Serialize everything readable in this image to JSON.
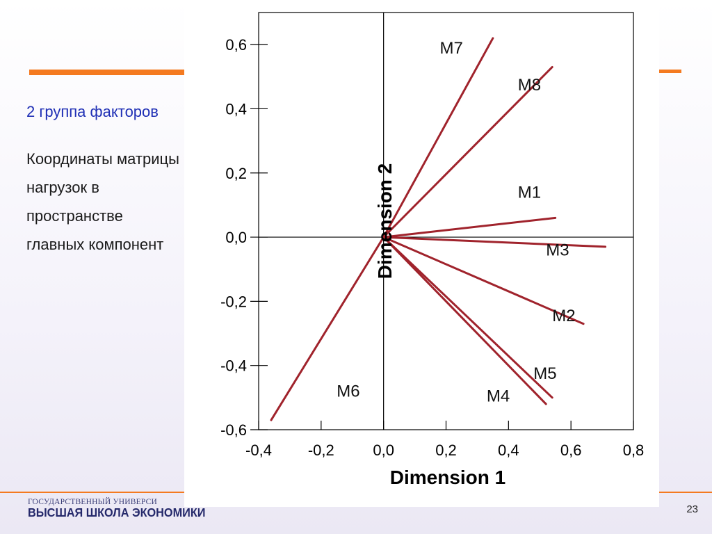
{
  "slide": {
    "text_group": "2 группа факторов",
    "text_body": "Координаты матрицы нагрузок в пространстве главных компонент",
    "footer_line1": "ГОСУДАРСТВЕННЫЙ УНИВЕРСИ",
    "footer_line2": "ВЫСШАЯ ШКОЛА ЭКОНОМИКИ",
    "page_number": "23",
    "colors": {
      "accent": "#f47a20",
      "vector": "#a0232c",
      "group_text": "#1f2fb5"
    }
  },
  "chart_data": {
    "type": "scatter",
    "xlabel": "Dimension 1",
    "ylabel": "Dimension 2",
    "xlim": [
      -0.4,
      0.8
    ],
    "ylim": [
      -0.6,
      0.7
    ],
    "xticks": [
      -0.4,
      -0.2,
      0.0,
      0.2,
      0.4,
      0.6,
      0.8
    ],
    "xtick_labels": [
      "-0,4",
      "-0,2",
      "0,0",
      "0,2",
      "0,4",
      "0,6",
      "0,8"
    ],
    "yticks": [
      0.6,
      0.4,
      0.2,
      0.0,
      -0.2,
      -0.4,
      -0.6
    ],
    "ytick_labels": [
      "0,6",
      "0,4",
      "0,2",
      "0,0",
      "-0,2",
      "-0,4",
      "-0,6"
    ],
    "reference_lines": {
      "x": 0.0,
      "y": 0.0
    },
    "grid": false,
    "vectors": [
      {
        "label": "M1",
        "x": 0.55,
        "y": 0.06,
        "label_x": 0.43,
        "label_y": 0.14
      },
      {
        "label": "M2",
        "x": 0.64,
        "y": -0.27,
        "label_x": 0.54,
        "label_y": -0.245
      },
      {
        "label": "M3",
        "x": 0.71,
        "y": -0.03,
        "label_x": 0.52,
        "label_y": -0.04
      },
      {
        "label": "M4",
        "x": 0.52,
        "y": -0.52,
        "label_x": 0.33,
        "label_y": -0.495
      },
      {
        "label": "M5",
        "x": 0.54,
        "y": -0.5,
        "label_x": 0.48,
        "label_y": -0.425
      },
      {
        "label": "M6",
        "x": -0.36,
        "y": -0.57,
        "label_x": -0.15,
        "label_y": -0.48
      },
      {
        "label": "M7",
        "x": 0.35,
        "y": 0.62,
        "label_x": 0.18,
        "label_y": 0.59
      },
      {
        "label": "M8",
        "x": 0.54,
        "y": 0.53,
        "label_x": 0.43,
        "label_y": 0.475
      }
    ]
  }
}
